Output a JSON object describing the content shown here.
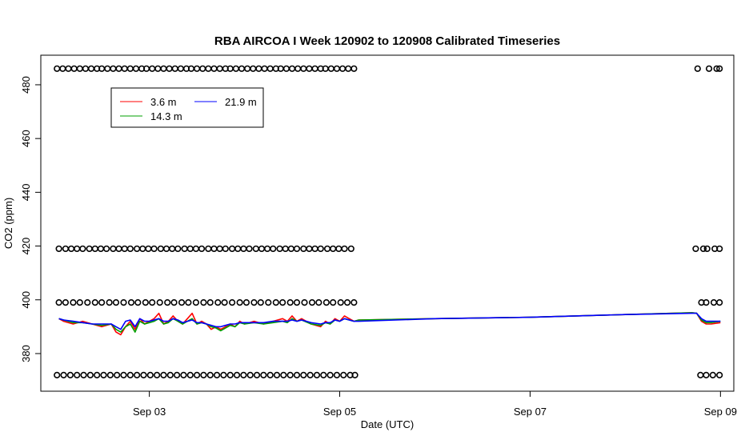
{
  "chart_data": {
    "type": "line",
    "title": "RBA AIRCOA I  Week 120902 to 120908  Calibrated Timeseries",
    "xlabel": "Date (UTC)",
    "ylabel": "CO2 (ppm)",
    "x_ticks": [
      {
        "label": "Sep 03",
        "day": 3
      },
      {
        "label": "Sep 05",
        "day": 5
      },
      {
        "label": "Sep 07",
        "day": 7
      },
      {
        "label": "Sep 09",
        "day": 9
      }
    ],
    "y_ticks": [
      380,
      400,
      420,
      440,
      460,
      480
    ],
    "xlim": [
      1.86,
      9.14
    ],
    "ylim": [
      366,
      491
    ],
    "legend": {
      "position": "top-left",
      "columns": 2
    },
    "colors": {
      "3.6 m": "#ff0000",
      "14.3 m": "#00a000",
      "21.9 m": "#0000ff"
    },
    "series": [
      {
        "name": "3.6 m",
        "color": "#ff0000",
        "x": [
          2.05,
          2.1,
          2.2,
          2.3,
          2.4,
          2.5,
          2.6,
          2.65,
          2.7,
          2.75,
          2.8,
          2.85,
          2.9,
          2.95,
          3.0,
          3.05,
          3.1,
          3.15,
          3.2,
          3.25,
          3.3,
          3.35,
          3.4,
          3.45,
          3.5,
          3.55,
          3.6,
          3.65,
          3.7,
          3.75,
          3.8,
          3.85,
          3.9,
          3.95,
          4.0,
          4.1,
          4.2,
          4.3,
          4.4,
          4.45,
          4.5,
          4.55,
          4.6,
          4.7,
          4.8,
          4.85,
          4.9,
          4.95,
          5.0,
          5.05,
          5.1,
          5.15,
          5.2,
          6.0,
          7.0,
          8.0,
          8.7,
          8.75,
          8.8,
          8.85,
          8.9,
          9.0
        ],
        "y": [
          393,
          392,
          391,
          392,
          391,
          390,
          391,
          388,
          387,
          390,
          392,
          389,
          393,
          391,
          392,
          393,
          395,
          391,
          392,
          394,
          392,
          391,
          393,
          395,
          391,
          392,
          391,
          389,
          390,
          389,
          390,
          391,
          390,
          392,
          391,
          392,
          391,
          392,
          393,
          392,
          394,
          392,
          393,
          391,
          390,
          392,
          391,
          393,
          392,
          394,
          393,
          392,
          392.5,
          393,
          393.5,
          394.5,
          395.2,
          395,
          392,
          391,
          391,
          391.5
        ]
      },
      {
        "name": "14.3 m",
        "color": "#00a000",
        "x": [
          2.05,
          2.1,
          2.2,
          2.3,
          2.4,
          2.5,
          2.6,
          2.65,
          2.7,
          2.75,
          2.8,
          2.85,
          2.9,
          2.95,
          3.0,
          3.05,
          3.1,
          3.15,
          3.2,
          3.25,
          3.3,
          3.35,
          3.4,
          3.45,
          3.5,
          3.55,
          3.6,
          3.65,
          3.7,
          3.75,
          3.8,
          3.85,
          3.9,
          3.95,
          4.0,
          4.1,
          4.2,
          4.3,
          4.4,
          4.45,
          4.5,
          4.55,
          4.6,
          4.7,
          4.8,
          4.85,
          4.9,
          4.95,
          5.0,
          5.05,
          5.1,
          5.15,
          5.2,
          6.0,
          7.0,
          8.0,
          8.7,
          8.75,
          8.8,
          8.85,
          8.9,
          9.0
        ],
        "y": [
          393,
          392.5,
          391.5,
          391.5,
          391,
          390.5,
          391,
          389,
          388,
          390,
          391,
          388,
          392,
          391,
          391.5,
          392,
          393,
          391,
          391.5,
          393,
          392,
          391,
          392,
          393,
          391,
          391.5,
          391,
          390,
          389.5,
          388.5,
          389.5,
          390.5,
          390,
          391.5,
          391,
          391.5,
          391,
          391.5,
          392,
          391.5,
          393,
          392,
          392.5,
          391,
          390.5,
          391.5,
          391,
          392.5,
          392,
          393,
          392.5,
          392,
          392.5,
          393,
          393.5,
          394.5,
          395.2,
          395,
          392.5,
          391.5,
          391.5,
          392
        ]
      },
      {
        "name": "21.9 m",
        "color": "#0000ff",
        "x": [
          2.05,
          2.1,
          2.2,
          2.3,
          2.4,
          2.5,
          2.6,
          2.65,
          2.7,
          2.75,
          2.8,
          2.85,
          2.9,
          2.95,
          3.0,
          3.05,
          3.1,
          3.15,
          3.2,
          3.25,
          3.3,
          3.35,
          3.4,
          3.45,
          3.5,
          3.55,
          3.6,
          3.65,
          3.7,
          3.75,
          3.8,
          3.85,
          3.9,
          3.95,
          4.0,
          4.1,
          4.2,
          4.3,
          4.4,
          4.45,
          4.5,
          4.55,
          4.6,
          4.7,
          4.8,
          4.85,
          4.9,
          4.95,
          5.0,
          5.05,
          5.1,
          5.15,
          5.2,
          6.0,
          7.0,
          8.0,
          8.7,
          8.75,
          8.8,
          8.85,
          8.9,
          9.0
        ],
        "y": [
          393,
          392.5,
          392,
          391.5,
          391,
          391,
          391,
          390,
          389,
          392,
          392.5,
          390,
          393,
          392,
          392,
          392.5,
          393,
          392,
          392,
          393,
          392.5,
          391.5,
          392,
          392.5,
          391.5,
          391.5,
          391,
          390.5,
          390,
          390,
          390.5,
          391,
          391,
          391.5,
          391.5,
          391.5,
          391.5,
          392,
          392,
          392,
          392.5,
          392,
          392.5,
          391.5,
          391,
          391.5,
          391.5,
          392.5,
          392,
          393,
          392.5,
          392,
          392,
          393,
          393.5,
          394.5,
          395,
          395,
          393,
          392,
          392,
          392
        ]
      }
    ],
    "flag_markers": {
      "symbol": "o",
      "rows": [
        {
          "y": 486,
          "x": [
            2.03,
            2.09,
            2.15,
            2.21,
            2.27,
            2.33,
            2.39,
            2.45,
            2.5,
            2.56,
            2.62,
            2.68,
            2.74,
            2.8,
            2.86,
            2.92,
            2.97,
            3.03,
            3.09,
            3.15,
            3.21,
            3.27,
            3.33,
            3.39,
            3.44,
            3.5,
            3.56,
            3.62,
            3.68,
            3.74,
            3.8,
            3.85,
            3.91,
            3.97,
            4.03,
            4.09,
            4.15,
            4.21,
            4.27,
            4.33,
            4.38,
            4.44,
            4.5,
            4.56,
            4.62,
            4.68,
            4.74,
            4.8,
            4.85,
            4.91,
            4.97,
            5.03,
            5.09,
            5.15,
            8.76,
            8.88,
            8.96,
            8.99
          ]
        },
        {
          "y": 419,
          "x": [
            2.05,
            2.12,
            2.18,
            2.24,
            2.3,
            2.37,
            2.43,
            2.49,
            2.55,
            2.62,
            2.68,
            2.74,
            2.8,
            2.87,
            2.93,
            2.99,
            3.05,
            3.12,
            3.18,
            3.24,
            3.3,
            3.37,
            3.43,
            3.49,
            3.55,
            3.62,
            3.68,
            3.74,
            3.8,
            3.87,
            3.93,
            3.99,
            4.05,
            4.12,
            4.18,
            4.24,
            4.3,
            4.37,
            4.43,
            4.49,
            4.55,
            4.62,
            4.68,
            4.74,
            4.8,
            4.87,
            4.93,
            4.99,
            5.05,
            5.12,
            8.74,
            8.82,
            8.86,
            8.94,
            8.99
          ]
        },
        {
          "y": 399,
          "x": [
            2.05,
            2.12,
            2.2,
            2.27,
            2.35,
            2.43,
            2.5,
            2.58,
            2.65,
            2.73,
            2.81,
            2.88,
            2.96,
            3.03,
            3.11,
            3.19,
            3.26,
            3.34,
            3.41,
            3.49,
            3.57,
            3.64,
            3.72,
            3.79,
            3.87,
            3.95,
            4.02,
            4.1,
            4.17,
            4.25,
            4.33,
            4.4,
            4.48,
            4.55,
            4.63,
            4.71,
            4.78,
            4.86,
            4.93,
            5.01,
            5.08,
            5.15,
            8.8,
            8.85,
            8.93,
            8.99
          ]
        },
        {
          "y": 372,
          "x": [
            2.03,
            2.1,
            2.17,
            2.24,
            2.31,
            2.38,
            2.45,
            2.52,
            2.59,
            2.66,
            2.73,
            2.8,
            2.87,
            2.94,
            3.01,
            3.08,
            3.15,
            3.22,
            3.29,
            3.36,
            3.43,
            3.5,
            3.57,
            3.64,
            3.71,
            3.78,
            3.85,
            3.92,
            3.99,
            4.06,
            4.13,
            4.2,
            4.27,
            4.34,
            4.41,
            4.48,
            4.55,
            4.62,
            4.69,
            4.76,
            4.83,
            4.9,
            4.97,
            5.04,
            5.11,
            5.16,
            8.79,
            8.85,
            8.92,
            8.99
          ]
        }
      ]
    }
  }
}
